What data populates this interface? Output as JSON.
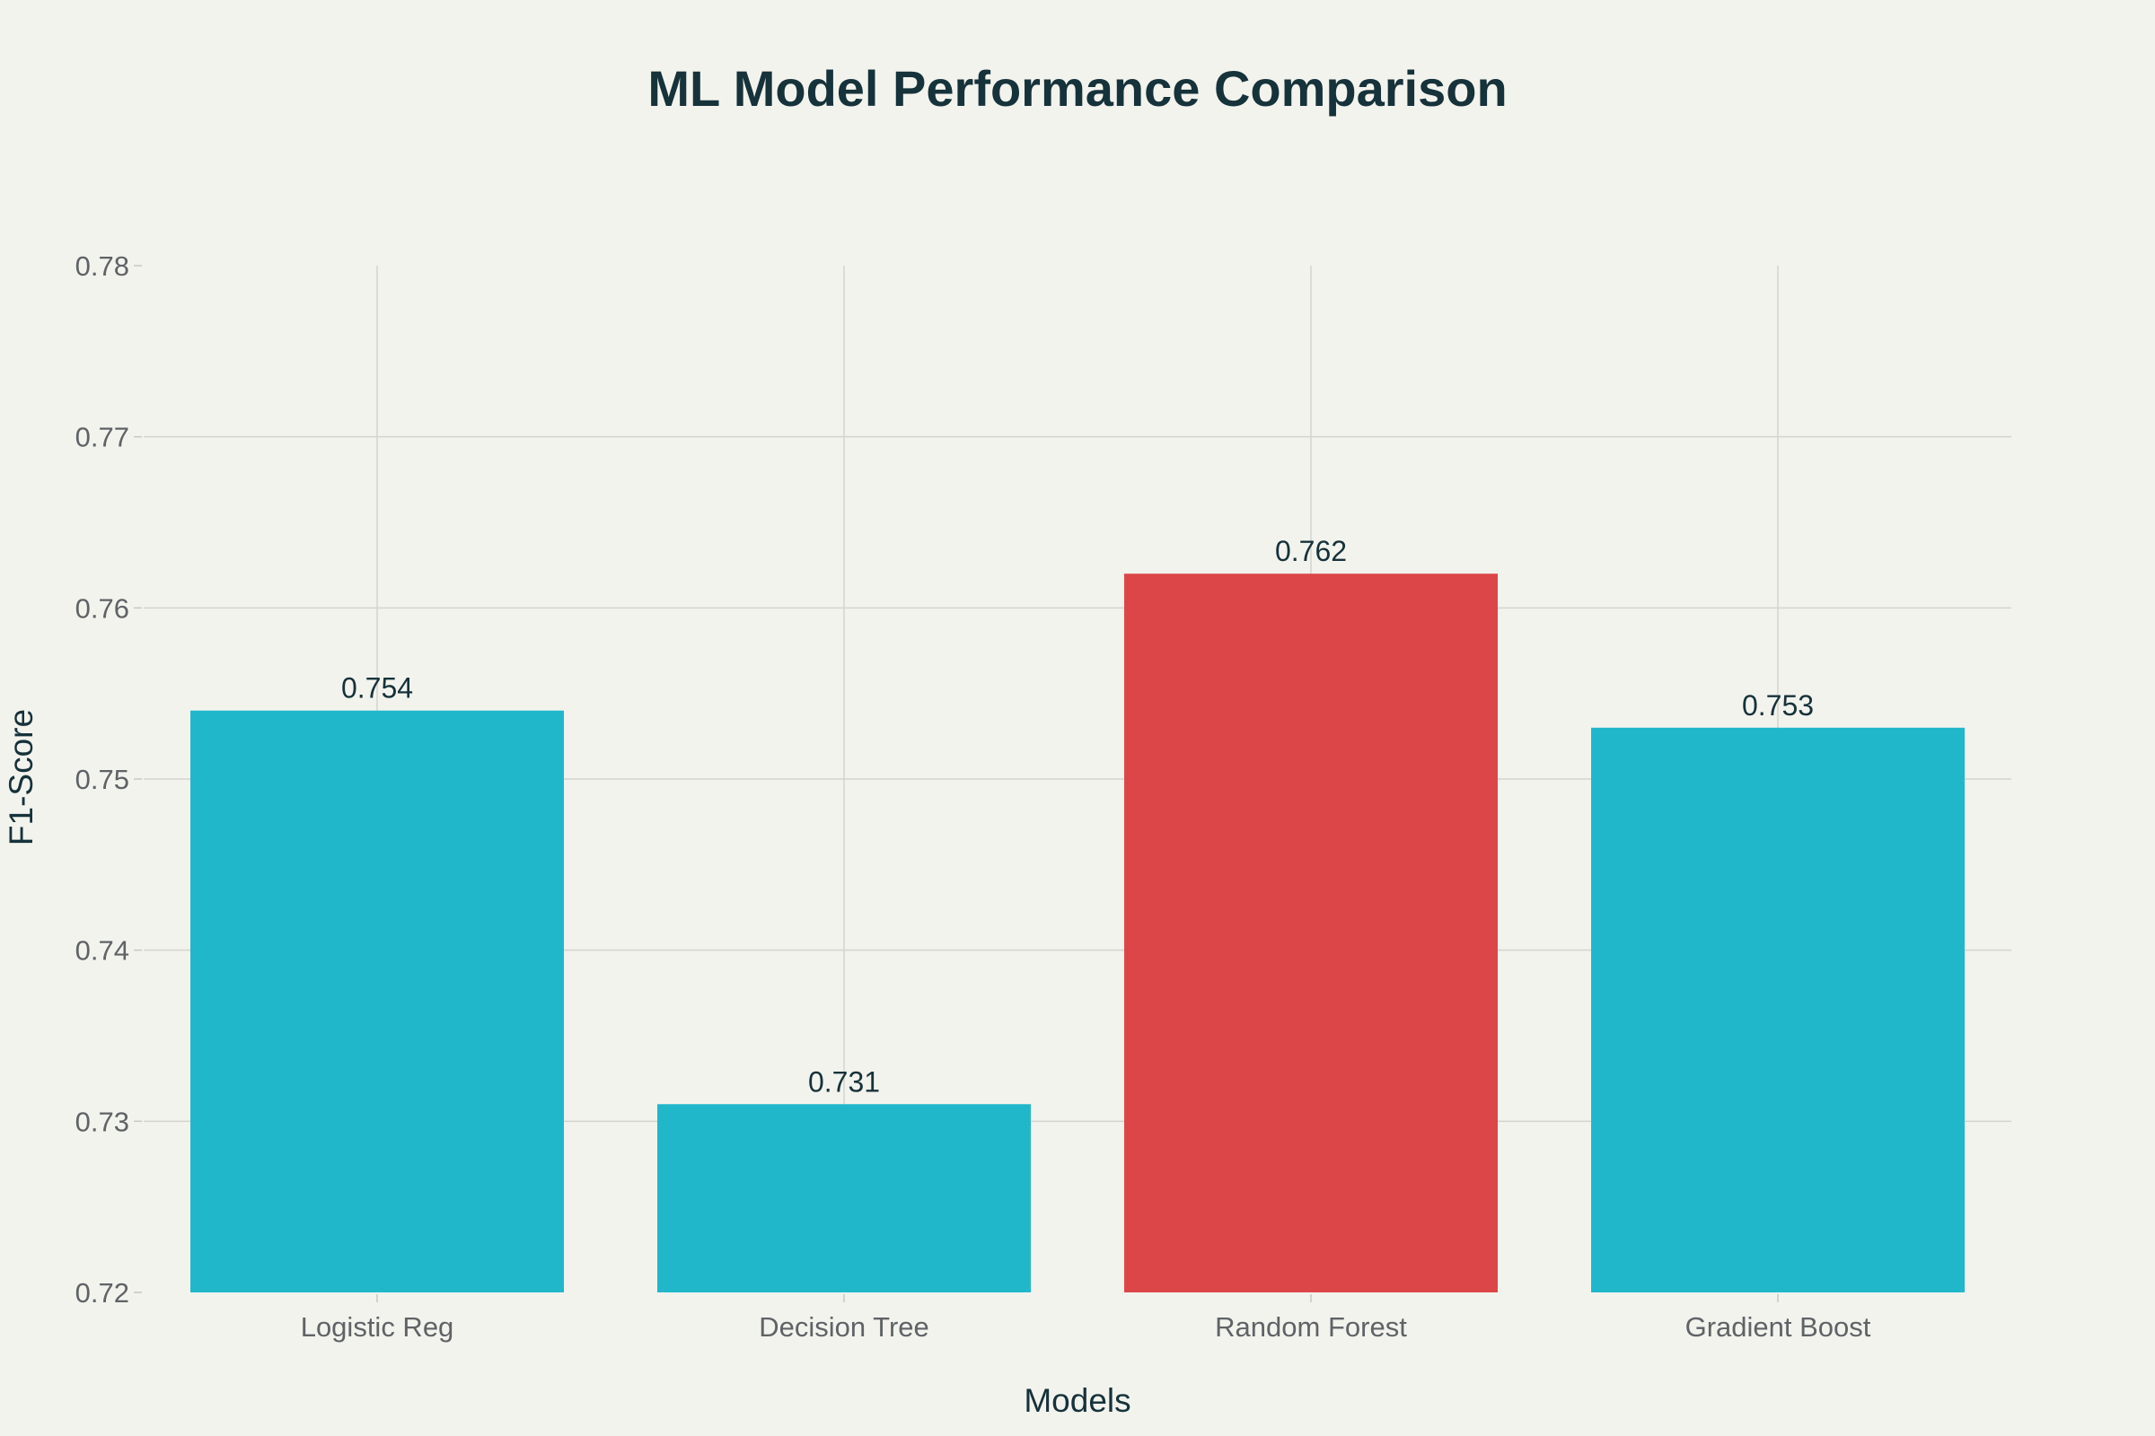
{
  "chart_data": {
    "type": "bar",
    "title": "ML Model Performance Comparison",
    "xlabel": "Models",
    "ylabel": "F1-Score",
    "categories": [
      "Logistic Reg",
      "Decision Tree",
      "Random Forest",
      "Gradient Boost"
    ],
    "values": [
      0.754,
      0.731,
      0.762,
      0.753
    ],
    "data_labels": [
      "0.754",
      "0.731",
      "0.762",
      "0.753"
    ],
    "colors": [
      "#21b7cb",
      "#21b7cb",
      "#dc4648",
      "#21b7cb"
    ],
    "ylim": [
      0.72,
      0.78
    ],
    "yticks": [
      0.72,
      0.73,
      0.74,
      0.75,
      0.76,
      0.77,
      0.78
    ],
    "ytick_labels": [
      "0.72",
      "0.73",
      "0.74",
      "0.75",
      "0.76",
      "0.77",
      "0.78"
    ],
    "grid": true,
    "legend": "none"
  }
}
